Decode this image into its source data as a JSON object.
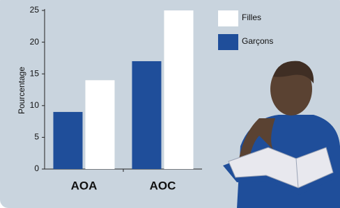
{
  "chart_data": {
    "type": "bar",
    "y_label": "Pourcentage",
    "categories": [
      "AOA",
      "AOC"
    ],
    "series": [
      {
        "name": "Filles",
        "color": "#ffffff",
        "values": [
          14,
          25
        ]
      },
      {
        "name": "Garçons",
        "color": "#1f4e9a",
        "values": [
          9,
          17
        ]
      }
    ],
    "ylim": [
      0,
      25
    ],
    "yticks": [
      0,
      5,
      10,
      15,
      20,
      25
    ]
  }
}
